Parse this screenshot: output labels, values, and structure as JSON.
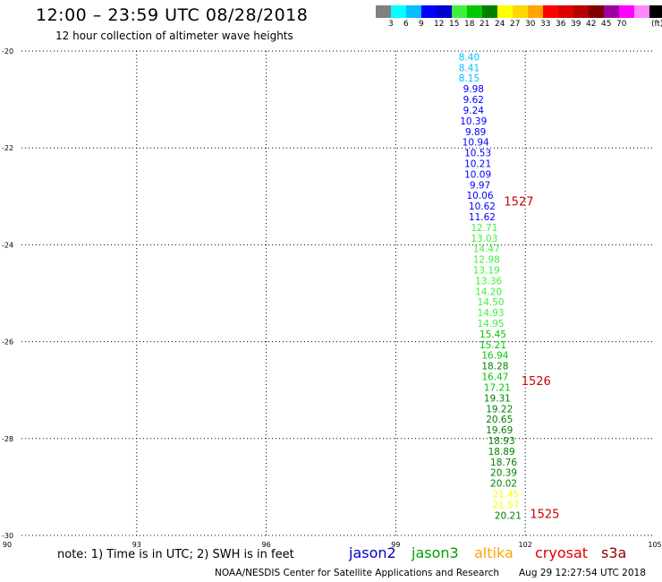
{
  "header": {
    "title": "12:00 – 23:59 UTC 08/28/2018",
    "subtitle": "12 hour collection of altimeter wave heights"
  },
  "colorbar": {
    "colors": [
      "#808080",
      "#00ffff",
      "#00bfff",
      "#0000ff",
      "#0000cd",
      "#3ef03e",
      "#00c800",
      "#008000",
      "#ffff00",
      "#ffd700",
      "#ffa500",
      "#ff0000",
      "#dc0000",
      "#b40000",
      "#800000",
      "#a000a0",
      "#ff00ff",
      "#ff88ff",
      "#000000"
    ],
    "labels": [
      "3",
      "6",
      "9",
      "12",
      "15",
      "18",
      "21",
      "24",
      "27",
      "30",
      "33",
      "36",
      "39",
      "42",
      "45",
      "70",
      "(ft)"
    ]
  },
  "chart_data": {
    "type": "scatter",
    "title": "12 hour collection of altimeter wave heights",
    "xlim": [
      90,
      105
    ],
    "ylim": [
      -30,
      -20
    ],
    "x_ticks": [
      "90",
      "93",
      "96",
      "99",
      "102",
      "105"
    ],
    "y_ticks": [
      "-20",
      "-22",
      "-24",
      "-26",
      "-28",
      "-30"
    ],
    "grid": true,
    "points": [
      {
        "lon": 100.7,
        "lat": -20.12,
        "v": "8.40",
        "c": "#00bfff"
      },
      {
        "lon": 100.7,
        "lat": -20.34,
        "v": "8.41",
        "c": "#00bfff"
      },
      {
        "lon": 100.7,
        "lat": -20.55,
        "v": "8.15",
        "c": "#00bfff"
      },
      {
        "lon": 100.8,
        "lat": -20.78,
        "v": "9.98",
        "c": "#0000ff"
      },
      {
        "lon": 100.8,
        "lat": -21.0,
        "v": "9.62",
        "c": "#0000ff"
      },
      {
        "lon": 100.8,
        "lat": -21.22,
        "v": "9.24",
        "c": "#0000ff"
      },
      {
        "lon": 100.8,
        "lat": -21.44,
        "v": "10.39",
        "c": "#0000ff"
      },
      {
        "lon": 100.85,
        "lat": -21.66,
        "v": "9.89",
        "c": "#0000ff"
      },
      {
        "lon": 100.85,
        "lat": -21.88,
        "v": "10.94",
        "c": "#0000ff"
      },
      {
        "lon": 100.9,
        "lat": -22.1,
        "v": "10.53",
        "c": "#0000ff"
      },
      {
        "lon": 100.9,
        "lat": -22.32,
        "v": "10.21",
        "c": "#0000ff"
      },
      {
        "lon": 100.9,
        "lat": -22.54,
        "v": "10.09",
        "c": "#0000ff"
      },
      {
        "lon": 100.95,
        "lat": -22.76,
        "v": "9.97",
        "c": "#0000ff"
      },
      {
        "lon": 100.95,
        "lat": -22.98,
        "v": "10.06",
        "c": "#0000ff"
      },
      {
        "lon": 101.0,
        "lat": -23.2,
        "v": "10.62",
        "c": "#0000ff"
      },
      {
        "lon": 101.0,
        "lat": -23.42,
        "v": "11.62",
        "c": "#0000ff"
      },
      {
        "lon": 101.05,
        "lat": -23.64,
        "v": "12.71",
        "c": "#3ef03e"
      },
      {
        "lon": 101.05,
        "lat": -23.86,
        "v": "13.03",
        "c": "#3ef03e"
      },
      {
        "lon": 101.1,
        "lat": -24.08,
        "v": "14.47",
        "c": "#3ef03e"
      },
      {
        "lon": 101.1,
        "lat": -24.3,
        "v": "12.98",
        "c": "#3ef03e"
      },
      {
        "lon": 101.1,
        "lat": -24.52,
        "v": "13.19",
        "c": "#3ef03e"
      },
      {
        "lon": 101.15,
        "lat": -24.74,
        "v": "13.36",
        "c": "#3ef03e"
      },
      {
        "lon": 101.15,
        "lat": -24.96,
        "v": "14.20",
        "c": "#3ef03e"
      },
      {
        "lon": 101.2,
        "lat": -25.18,
        "v": "14.50",
        "c": "#3ef03e"
      },
      {
        "lon": 101.2,
        "lat": -25.4,
        "v": "14.93",
        "c": "#3ef03e"
      },
      {
        "lon": 101.2,
        "lat": -25.62,
        "v": "14.95",
        "c": "#3ef03e"
      },
      {
        "lon": 101.25,
        "lat": -25.84,
        "v": "15.45",
        "c": "#00c800"
      },
      {
        "lon": 101.25,
        "lat": -26.06,
        "v": "15.21",
        "c": "#00c800"
      },
      {
        "lon": 101.3,
        "lat": -26.28,
        "v": "16.94",
        "c": "#00c800"
      },
      {
        "lon": 101.3,
        "lat": -26.5,
        "v": "18.28",
        "c": "#008000"
      },
      {
        "lon": 101.3,
        "lat": -26.72,
        "v": "16.47",
        "c": "#00c800"
      },
      {
        "lon": 101.35,
        "lat": -26.94,
        "v": "17.21",
        "c": "#00c800"
      },
      {
        "lon": 101.35,
        "lat": -27.16,
        "v": "19.31",
        "c": "#008000"
      },
      {
        "lon": 101.4,
        "lat": -27.38,
        "v": "19.22",
        "c": "#008000"
      },
      {
        "lon": 101.4,
        "lat": -27.6,
        "v": "20.65",
        "c": "#008000"
      },
      {
        "lon": 101.4,
        "lat": -27.82,
        "v": "19.69",
        "c": "#008000"
      },
      {
        "lon": 101.45,
        "lat": -28.04,
        "v": "18.93",
        "c": "#008000"
      },
      {
        "lon": 101.45,
        "lat": -28.26,
        "v": "18.89",
        "c": "#008000"
      },
      {
        "lon": 101.5,
        "lat": -28.48,
        "v": "18.76",
        "c": "#008000"
      },
      {
        "lon": 101.5,
        "lat": -28.7,
        "v": "20.39",
        "c": "#008000"
      },
      {
        "lon": 101.5,
        "lat": -28.92,
        "v": "20.02",
        "c": "#008000"
      },
      {
        "lon": 101.55,
        "lat": -29.14,
        "v": "21.45",
        "c": "#ffff00"
      },
      {
        "lon": 101.55,
        "lat": -29.36,
        "v": "21.57",
        "c": "#ffff00"
      },
      {
        "lon": 101.6,
        "lat": -29.58,
        "v": "20.21",
        "c": "#008000"
      }
    ],
    "time_labels": [
      {
        "lon": 101.85,
        "lat": -23.1,
        "text": "1527"
      },
      {
        "lon": 102.25,
        "lat": -26.8,
        "text": "1526"
      },
      {
        "lon": 102.45,
        "lat": -29.55,
        "text": "1525"
      }
    ]
  },
  "bottom": {
    "note": "note: 1) Time is in UTC; 2) SWH is in feet",
    "satellites": [
      {
        "name": "jason2",
        "color": "#0000cd"
      },
      {
        "name": "jason3",
        "color": "#00a000"
      },
      {
        "name": "altika",
        "color": "#ffa500"
      },
      {
        "name": "cryosat",
        "color": "#e00000"
      },
      {
        "name": "s3a",
        "color": "#8b0000"
      }
    ],
    "footer": "NOAA/NESDIS Center for Satellite Applications and Research",
    "timestamp": "Aug 29 12:27:54 UTC 2018"
  }
}
